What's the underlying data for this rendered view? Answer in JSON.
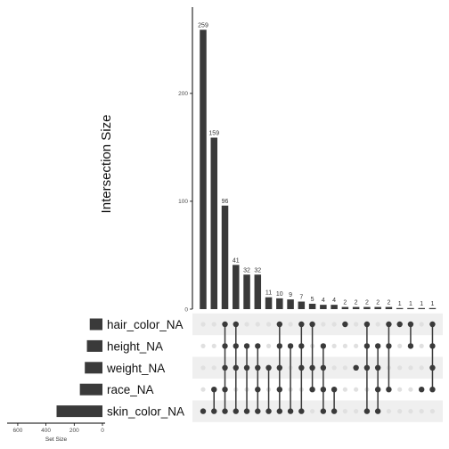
{
  "chart_data": {
    "type": "bar",
    "ylabel": "Intersection Size",
    "xlabel_set_size": "Set Size",
    "ylim": [
      0,
      280
    ],
    "y_ticks": [
      0,
      100,
      200
    ],
    "set_size_ticks": [
      600,
      400,
      200,
      0
    ],
    "set_size_max": 650,
    "sets": [
      "hair_color_NA",
      "height_NA",
      "weight_NA",
      "race_NA",
      "skin_color_NA"
    ],
    "set_sizes": [
      90,
      110,
      125,
      160,
      325
    ],
    "intersections": [
      {
        "value": 259,
        "members": [
          4
        ]
      },
      {
        "value": 159,
        "members": [
          3,
          4
        ]
      },
      {
        "value": 96,
        "members": [
          0,
          1,
          2,
          3,
          4
        ]
      },
      {
        "value": 41,
        "members": [
          0,
          1,
          2,
          4
        ]
      },
      {
        "value": 32,
        "members": [
          1,
          2,
          4
        ]
      },
      {
        "value": 32,
        "members": [
          1,
          2,
          3,
          4
        ]
      },
      {
        "value": 11,
        "members": [
          2,
          4
        ]
      },
      {
        "value": 10,
        "members": [
          0,
          1,
          2,
          3,
          4
        ]
      },
      {
        "value": 9,
        "members": [
          1,
          4
        ]
      },
      {
        "value": 7,
        "members": [
          0,
          1,
          2,
          4
        ]
      },
      {
        "value": 5,
        "members": [
          0,
          2,
          3
        ]
      },
      {
        "value": 4,
        "members": [
          1,
          2,
          3,
          4
        ]
      },
      {
        "value": 4,
        "members": [
          3,
          4
        ]
      },
      {
        "value": 2,
        "members": [
          0
        ]
      },
      {
        "value": 2,
        "members": [
          2
        ]
      },
      {
        "value": 2,
        "members": [
          0,
          1,
          2,
          4
        ]
      },
      {
        "value": 2,
        "members": [
          1,
          2,
          3,
          4
        ]
      },
      {
        "value": 2,
        "members": [
          0,
          1,
          3
        ]
      },
      {
        "value": 1,
        "members": [
          0
        ]
      },
      {
        "value": 1,
        "members": [
          0,
          1
        ]
      },
      {
        "value": 1,
        "members": [
          3
        ]
      },
      {
        "value": 1,
        "members": [
          0,
          1,
          2,
          3
        ]
      }
    ]
  },
  "colors": {
    "bar": "#3a3a3a",
    "dot_active": "#3a3a3a",
    "dot_inactive": "#e0e0e0",
    "stripe": "#efefef"
  }
}
